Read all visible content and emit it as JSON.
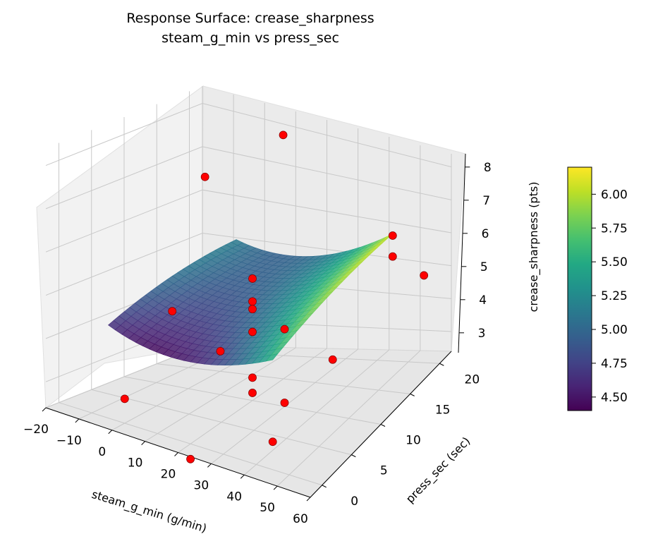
{
  "chart_data": {
    "type": "surface3d",
    "title": "Response Surface: crease_sharpness",
    "subtitle": "steam_g_min vs press_sec",
    "xlabel": "steam_g_min (g/min)",
    "ylabel": "press_sec (sec)",
    "zlabel": "crease_sharpness (pts)",
    "x_ticks": [
      -20,
      -10,
      0,
      10,
      20,
      30,
      40,
      50,
      60
    ],
    "y_ticks": [
      0,
      5,
      10,
      15,
      20
    ],
    "z_ticks": [
      3,
      4,
      5,
      6,
      7,
      8
    ],
    "xlim": [
      -20,
      60
    ],
    "ylim": [
      -2,
      22
    ],
    "zlim": [
      2.4,
      8.4
    ],
    "colorbar": {
      "colormap": "viridis",
      "range": [
        4.4,
        6.2
      ],
      "ticks": [
        "4.50",
        "4.75",
        "5.00",
        "5.25",
        "5.50",
        "5.75",
        "6.00"
      ]
    },
    "surface_domain": {
      "x": [
        -5,
        45
      ],
      "y": [
        0,
        20
      ]
    },
    "points": [
      {
        "x": -5,
        "y": 10,
        "z": 4.2
      },
      {
        "x": 10,
        "y": 20,
        "z": 8.0
      },
      {
        "x": 20,
        "y": 10,
        "z": 5.6
      },
      {
        "x": 20,
        "y": 10,
        "z": 5.0
      },
      {
        "x": 20,
        "y": 10,
        "z": 4.8
      },
      {
        "x": 20,
        "y": 10,
        "z": 4.2
      },
      {
        "x": 20,
        "y": 10,
        "z": 3.0
      },
      {
        "x": 20,
        "y": 10,
        "z": 2.6
      },
      {
        "x": 10,
        "y": 10,
        "z": 3.5
      },
      {
        "x": 0,
        "y": 0,
        "z": 3.0
      },
      {
        "x": 20,
        "y": 0,
        "z": 2.0
      },
      {
        "x": 30,
        "y": 10,
        "z": 4.5
      },
      {
        "x": 30,
        "y": 10,
        "z": 2.5
      },
      {
        "x": 45,
        "y": 20,
        "z": 6.0
      },
      {
        "x": 45,
        "y": 10,
        "z": 4.0
      },
      {
        "x": 45,
        "y": 0,
        "z": 3.2
      },
      {
        "x": 45,
        "y": 20,
        "z": 5.4
      },
      {
        "x": 55,
        "y": 20,
        "z": 5.0
      },
      {
        "x": -15,
        "y": 20,
        "z": 6.5
      }
    ],
    "grid": true,
    "point_color": "#ff0000"
  }
}
